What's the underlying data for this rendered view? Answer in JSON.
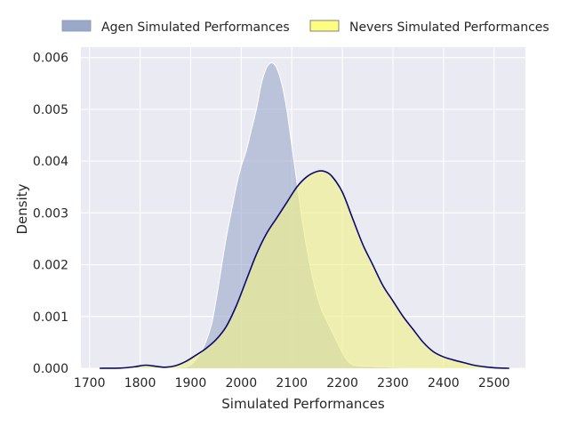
{
  "chart_data": {
    "type": "area",
    "title": "",
    "xlabel": "Simulated Performances",
    "ylabel": "Density",
    "xlim": [
      1683,
      2562
    ],
    "ylim": [
      0,
      0.0062
    ],
    "x_ticks": [
      "1700",
      "1800",
      "1900",
      "2000",
      "2100",
      "2200",
      "2300",
      "2400",
      "2500"
    ],
    "x_tick_values": [
      1700,
      1800,
      1900,
      2000,
      2100,
      2200,
      2300,
      2400,
      2500
    ],
    "y_ticks": [
      "0.000",
      "0.001",
      "0.002",
      "0.003",
      "0.004",
      "0.005",
      "0.006"
    ],
    "y_tick_values": [
      0,
      0.001,
      0.002,
      0.003,
      0.004,
      0.005,
      0.006
    ],
    "grid": true,
    "legend_position": "top",
    "series": [
      {
        "name": "Agen Simulated Performances",
        "fill": "#9aa9c9",
        "fill_opacity": 0.6,
        "line": "#ffffff",
        "x": [
          1830,
          1880,
          1900,
          1920,
          1940,
          1950,
          1960,
          1970,
          1980,
          1990,
          2000,
          2010,
          2020,
          2030,
          2040,
          2050,
          2060,
          2070,
          2080,
          2090,
          2100,
          2110,
          2120,
          2130,
          2140,
          2150,
          2160,
          2170,
          2180,
          2190,
          2200,
          2210,
          2220,
          2230,
          2250,
          2280,
          2300,
          2320,
          2340
        ],
        "y": [
          0,
          2e-05,
          7e-05,
          0.0003,
          0.0008,
          0.0013,
          0.0019,
          0.0025,
          0.003,
          0.0035,
          0.0039,
          0.0042,
          0.0046,
          0.005,
          0.0055,
          0.0058,
          0.0059,
          0.0058,
          0.0055,
          0.005,
          0.0043,
          0.0036,
          0.0029,
          0.0023,
          0.0018,
          0.0014,
          0.0011,
          0.0009,
          0.0007,
          0.0005,
          0.0003,
          0.00015,
          7e-05,
          5e-05,
          4e-05,
          3e-05,
          2e-05,
          1e-05,
          0
        ]
      },
      {
        "name": "Nevers Simulated Performances",
        "fill": "#f0f08c",
        "fill_opacity": 0.65,
        "line": "#0a0a6e",
        "x": [
          1720,
          1760,
          1790,
          1810,
          1830,
          1850,
          1870,
          1890,
          1910,
          1930,
          1950,
          1970,
          1990,
          2010,
          2030,
          2050,
          2070,
          2090,
          2110,
          2130,
          2150,
          2165,
          2180,
          2200,
          2220,
          2240,
          2260,
          2280,
          2300,
          2320,
          2340,
          2360,
          2380,
          2400,
          2420,
          2440,
          2460,
          2480,
          2500,
          2530
        ],
        "y": [
          0,
          3e-06,
          3e-05,
          6e-05,
          4e-05,
          2e-05,
          5e-05,
          0.00013,
          0.00025,
          0.00038,
          0.00055,
          0.0008,
          0.0012,
          0.0017,
          0.0022,
          0.0026,
          0.0029,
          0.0032,
          0.0035,
          0.0037,
          0.0038,
          0.0038,
          0.0037,
          0.0034,
          0.0029,
          0.0024,
          0.002,
          0.0016,
          0.0013,
          0.001,
          0.00075,
          0.0005,
          0.00032,
          0.00022,
          0.00016,
          0.00011,
          6e-05,
          3e-05,
          1e-05,
          0
        ]
      }
    ]
  }
}
